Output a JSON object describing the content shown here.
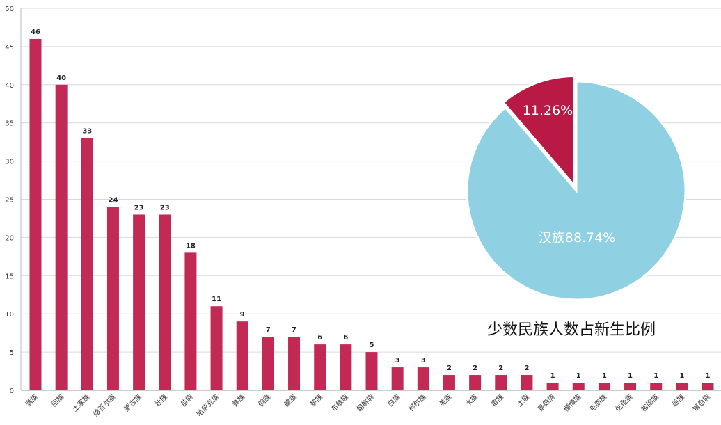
{
  "chart_data": [
    {
      "type": "bar",
      "categories": [
        "满族",
        "回族",
        "土家族",
        "维吾尔族",
        "蒙古族",
        "壮族",
        "苗族",
        "哈萨克族",
        "彝族",
        "侗族",
        "藏族",
        "黎族",
        "布依族",
        "朝鲜族",
        "白族",
        "柯尔族",
        "羌族",
        "水族",
        "畲族",
        "土族",
        "景颇族",
        "傈僳族",
        "毛南族",
        "仡佬族",
        "裕固族",
        "瑶族",
        "锡伯族"
      ],
      "values": [
        46,
        40,
        33,
        24,
        23,
        23,
        18,
        11,
        9,
        7,
        7,
        6,
        6,
        5,
        3,
        3,
        2,
        2,
        2,
        2,
        1,
        1,
        1,
        1,
        1,
        1,
        1
      ],
      "yticks": [
        0,
        5,
        10,
        15,
        20,
        25,
        30,
        35,
        40,
        45,
        50
      ],
      "ylim": [
        0,
        50
      ],
      "grid": true,
      "bar_color": "#c22a55"
    },
    {
      "type": "pie",
      "title": "少数民族人数占新生比例",
      "slices": [
        {
          "label": "11.26%",
          "value": 11.26,
          "color": "#b81a45"
        },
        {
          "label": "汉族88.74%",
          "value": 88.74,
          "color": "#8fd0e3"
        }
      ]
    }
  ]
}
